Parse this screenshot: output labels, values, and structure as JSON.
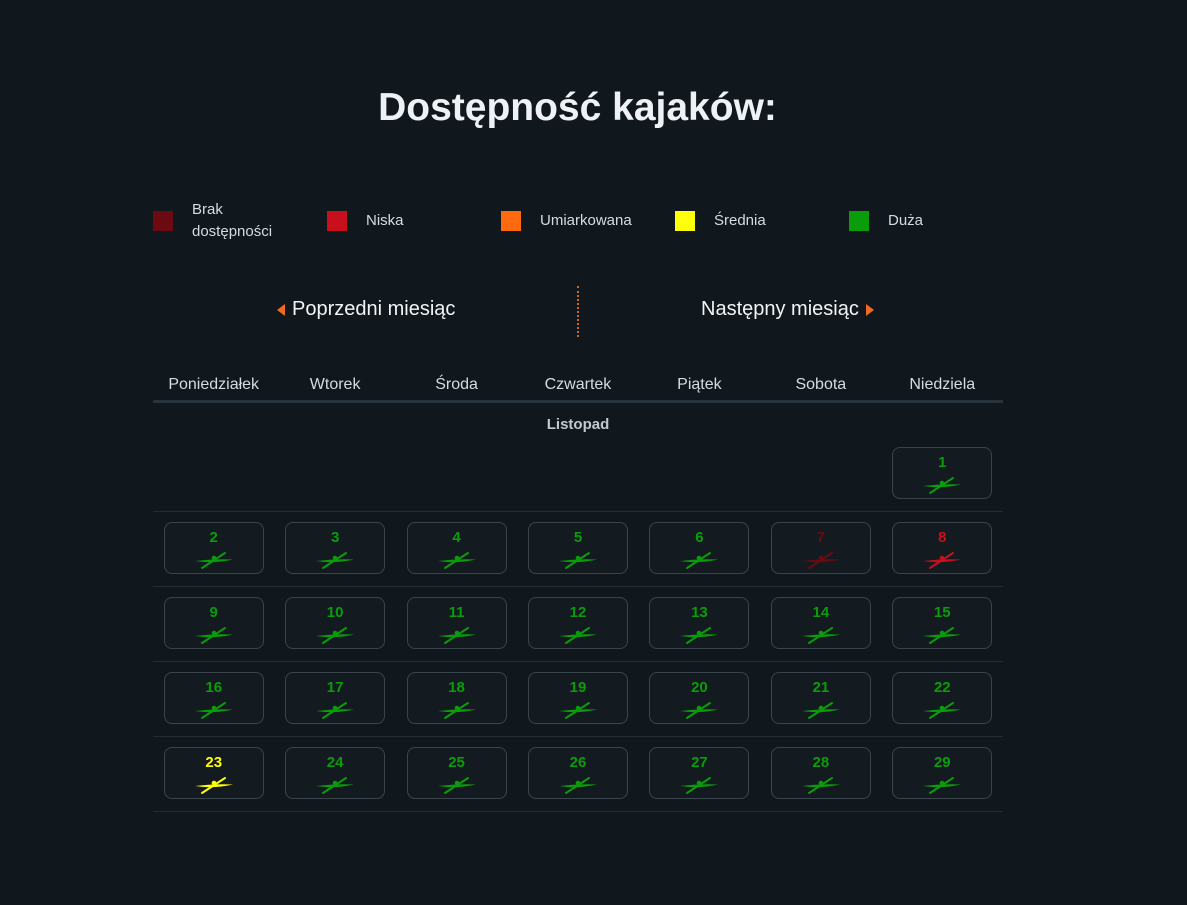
{
  "title": "Dostępność kajaków:",
  "legend": [
    {
      "label": "Brak dostępności",
      "color": "#6b0a10"
    },
    {
      "label": "Niska",
      "color": "#c8101c"
    },
    {
      "label": "Umiarkowana",
      "color": "#ff6a10"
    },
    {
      "label": "Średnia",
      "color": "#ffff0a"
    },
    {
      "label": "Duża",
      "color": "#0a9c0a"
    }
  ],
  "nav": {
    "prev": "Poprzedni miesiąc",
    "next": "Następny miesiąc"
  },
  "weekdays": [
    "Poniedziałek",
    "Wtorek",
    "Środa",
    "Czwartek",
    "Piątek",
    "Sobota",
    "Niedziela"
  ],
  "month": "Listopad",
  "availability_colors": {
    "none": "#6b0a10",
    "low": "#c8101c",
    "moderate": "#ff6a10",
    "medium": "#ffff0a",
    "high": "#0a9c0a"
  },
  "days": [
    {
      "day": "1",
      "weekday": 6,
      "availability": "high"
    },
    {
      "day": "2",
      "weekday": 0,
      "availability": "high"
    },
    {
      "day": "3",
      "weekday": 1,
      "availability": "high"
    },
    {
      "day": "4",
      "weekday": 2,
      "availability": "high"
    },
    {
      "day": "5",
      "weekday": 3,
      "availability": "high"
    },
    {
      "day": "6",
      "weekday": 4,
      "availability": "high"
    },
    {
      "day": "7",
      "weekday": 5,
      "availability": "none"
    },
    {
      "day": "8",
      "weekday": 6,
      "availability": "low"
    },
    {
      "day": "9",
      "weekday": 0,
      "availability": "high"
    },
    {
      "day": "10",
      "weekday": 1,
      "availability": "high"
    },
    {
      "day": "11",
      "weekday": 2,
      "availability": "high"
    },
    {
      "day": "12",
      "weekday": 3,
      "availability": "high"
    },
    {
      "day": "13",
      "weekday": 4,
      "availability": "high"
    },
    {
      "day": "14",
      "weekday": 5,
      "availability": "high"
    },
    {
      "day": "15",
      "weekday": 6,
      "availability": "high"
    },
    {
      "day": "16",
      "weekday": 0,
      "availability": "high"
    },
    {
      "day": "17",
      "weekday": 1,
      "availability": "high"
    },
    {
      "day": "18",
      "weekday": 2,
      "availability": "high"
    },
    {
      "day": "19",
      "weekday": 3,
      "availability": "high"
    },
    {
      "day": "20",
      "weekday": 4,
      "availability": "high"
    },
    {
      "day": "21",
      "weekday": 5,
      "availability": "high"
    },
    {
      "day": "22",
      "weekday": 6,
      "availability": "high"
    },
    {
      "day": "23",
      "weekday": 0,
      "availability": "medium"
    },
    {
      "day": "24",
      "weekday": 1,
      "availability": "high"
    },
    {
      "day": "25",
      "weekday": 2,
      "availability": "high"
    },
    {
      "day": "26",
      "weekday": 3,
      "availability": "high"
    },
    {
      "day": "27",
      "weekday": 4,
      "availability": "high"
    },
    {
      "day": "28",
      "weekday": 5,
      "availability": "high"
    },
    {
      "day": "29",
      "weekday": 6,
      "availability": "high"
    }
  ]
}
